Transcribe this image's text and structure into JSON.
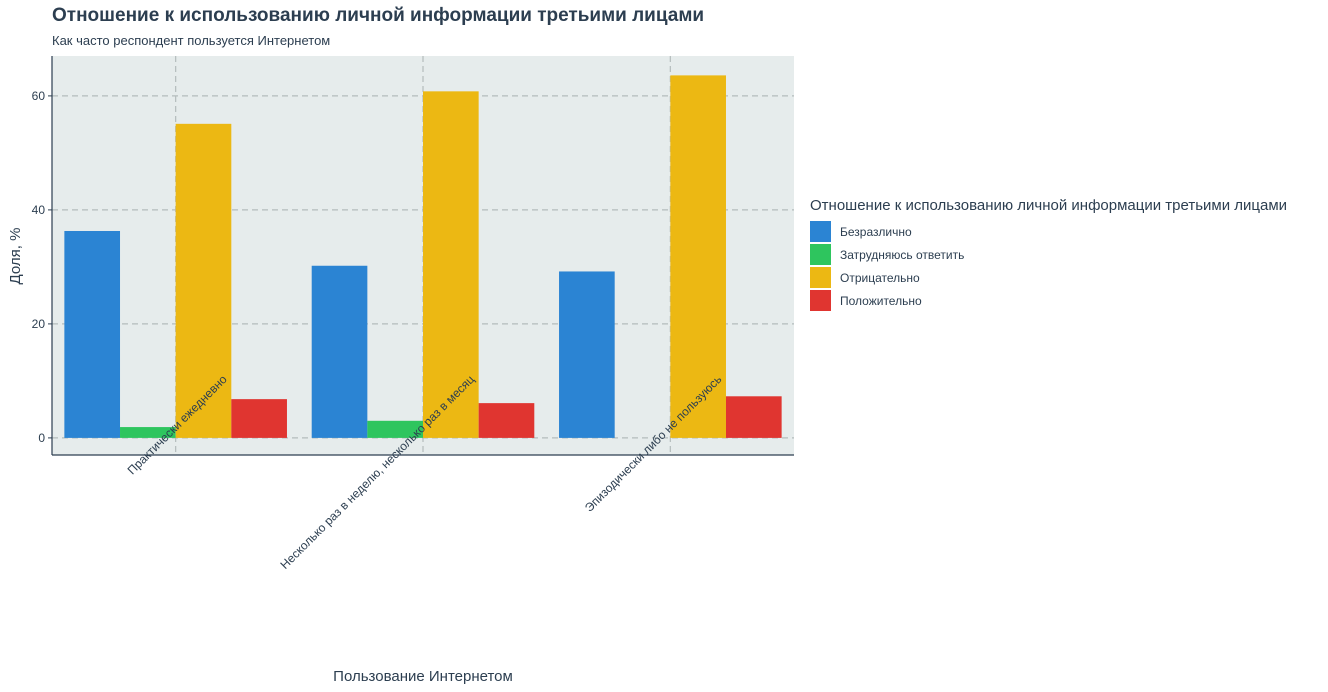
{
  "chart_data": {
    "type": "bar",
    "title": "Отношение к использованию личной информации третьими лицами",
    "subtitle": "Как часто респондент пользуется Интернетом",
    "xlabel": "Пользование Интернетом",
    "ylabel": "Доля, %",
    "ylim": [
      -3,
      67
    ],
    "yticks": [
      0,
      20,
      40,
      60
    ],
    "grid": true,
    "legend_position": "right",
    "legend_title": "Отношение к использованию личной информации третьими лицами",
    "categories": [
      "Практически ежедневно",
      "Несколько раз в неделю, несколько раз в месяц",
      "Эпизодически либо не пользуюсь"
    ],
    "series": [
      {
        "name": "Безразлично",
        "color": "#2b84d3",
        "values": [
          36.3,
          30.2,
          29.2
        ]
      },
      {
        "name": "Затрудняюсь ответить",
        "color": "#2ec55e",
        "values": [
          1.9,
          3.0,
          0
        ]
      },
      {
        "name": "Отрицательно",
        "color": "#ecb813",
        "values": [
          55.1,
          60.8,
          63.6
        ]
      },
      {
        "name": "Положительно",
        "color": "#e03530",
        "values": [
          6.8,
          6.1,
          7.3
        ]
      }
    ]
  }
}
